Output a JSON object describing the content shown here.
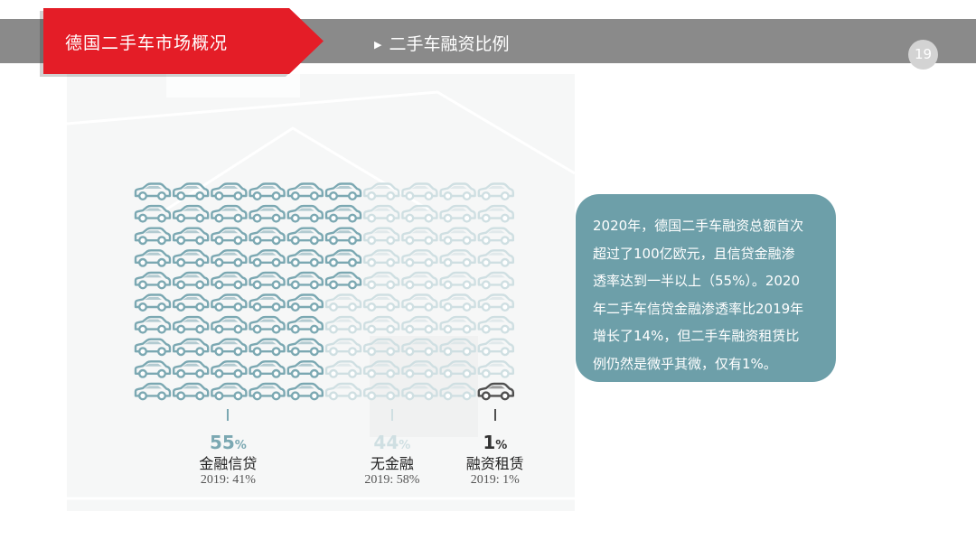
{
  "header": {
    "section_title": "德国二手车市场概况",
    "subtitle": "二手车融资比例",
    "page_number": "19"
  },
  "colors": {
    "credit": "#7ba8b2",
    "none": "#cfdfe2",
    "lease": "#505050",
    "accent_red": "#e41d27"
  },
  "chart_data": {
    "type": "icon-array",
    "icon": "car-icon",
    "grid": {
      "rows": 10,
      "cols": 10
    },
    "series": [
      {
        "name": "金融信贷",
        "value": 55,
        "label": "55",
        "unit": "%",
        "prev": "2019: 41%"
      },
      {
        "name": "无金融",
        "value": 44,
        "label": "44",
        "unit": "%",
        "prev": "2019: 58%"
      },
      {
        "name": "融资租赁",
        "value": 1,
        "label": "1",
        "unit": "%",
        "prev": "2019: 1%"
      }
    ]
  },
  "info_box": {
    "lines": [
      "2020年，德国二手车融资总额首次",
      "超过了100亿欧元，且信贷金融渗",
      "透率达到一半以上（55%）。2020",
      "年二手车信贷金融渗透率比2019年",
      "增长了14%，但二手车融资租赁比",
      "例仍然是微乎其微，仅有1%。"
    ]
  }
}
